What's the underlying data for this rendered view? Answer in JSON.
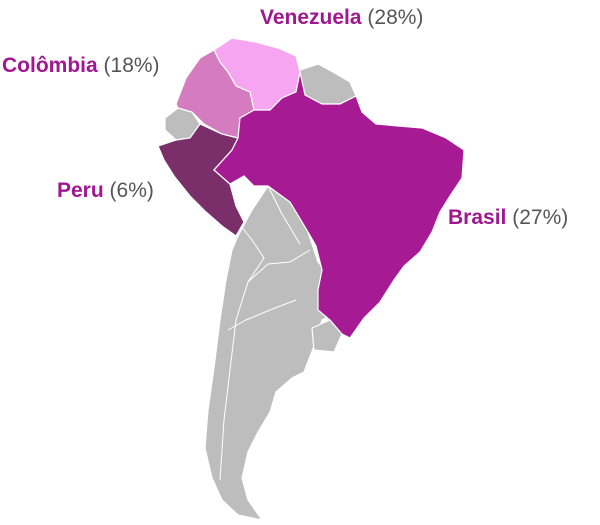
{
  "map": {
    "colors": {
      "land": "#bdbdbd",
      "border": "#ffffff",
      "brand_label": "#a0188f",
      "pct_label": "#555555"
    },
    "countries": [
      {
        "id": "venezuela",
        "name": "Venezuela",
        "share": "(28%)",
        "fill": "#f6a6f0"
      },
      {
        "id": "colombia",
        "name": "Colômbia",
        "share": "(18%)",
        "fill": "#d47cbf"
      },
      {
        "id": "peru",
        "name": "Peru",
        "share": "(6%)",
        "fill": "#7a2f6b"
      },
      {
        "id": "brasil",
        "name": "Brasil",
        "share": "(27%)",
        "fill": "#a61a94"
      }
    ]
  }
}
